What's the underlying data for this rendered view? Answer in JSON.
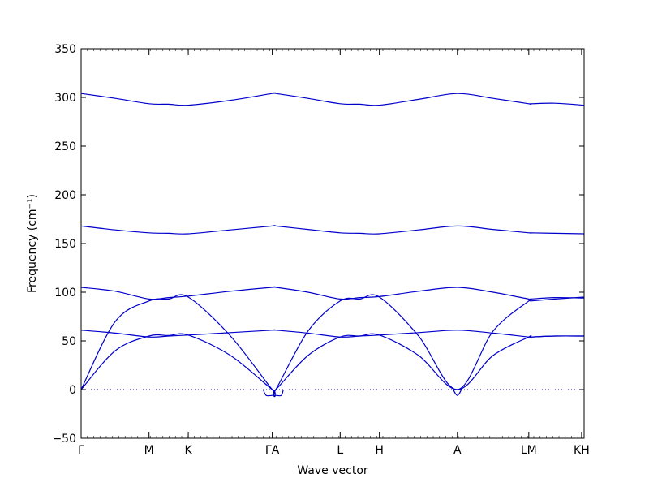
{
  "chart_data": {
    "type": "line",
    "title": "",
    "xlabel": "Wave vector",
    "ylabel": "Frequency (cm⁻¹)",
    "ylim": [
      -50,
      350
    ],
    "yticks": [
      -50,
      0,
      50,
      100,
      150,
      200,
      250,
      300,
      350
    ],
    "ytick_labels": [
      "−50",
      "0",
      "50",
      "100",
      "150",
      "200",
      "250",
      "300",
      "350"
    ],
    "xlim": [
      0,
      10
    ],
    "high_symmetry_points": [
      {
        "label": "Γ",
        "x": 0
      },
      {
        "label": "M",
        "x": 1.35
      },
      {
        "label": "K",
        "x": 2.13
      },
      {
        "label": "ΓA",
        "x": 3.8
      },
      {
        "label": "L",
        "x": 5.15
      },
      {
        "label": "H",
        "x": 5.93
      },
      {
        "label": "A",
        "x": 7.48
      },
      {
        "label": "LM",
        "x": 8.9
      },
      {
        "label": "KH",
        "x": 9.95
      }
    ],
    "zero_line": {
      "y": 0,
      "style": "dotted"
    },
    "line_color": "#0000cc",
    "series": [
      {
        "x": [
          0,
          0.68,
          1.35,
          1.74,
          2.13,
          2.97,
          3.8,
          3.87,
          4.51,
          5.15,
          5.54,
          5.93,
          6.71,
          7.48,
          8.19,
          8.9,
          8.94,
          9.42,
          10
        ],
        "y": [
          304,
          299,
          293.5,
          293,
          292,
          297,
          304,
          304,
          299,
          293.5,
          293,
          292,
          298,
          304,
          299,
          293.5,
          293.5,
          294,
          292
        ]
      },
      {
        "x": [
          0,
          0.68,
          1.35,
          1.74,
          2.13,
          2.97,
          3.8,
          3.87,
          4.51,
          5.15,
          5.54,
          5.93,
          6.71,
          7.48,
          8.19,
          8.9,
          8.94,
          9.42,
          10
        ],
        "y": [
          168,
          164,
          161,
          160.5,
          160,
          164,
          168,
          168,
          164.5,
          161,
          160.5,
          160,
          164,
          168,
          164.5,
          161,
          161,
          160.5,
          160
        ]
      },
      {
        "x": [
          0,
          0.68,
          1.35,
          1.74,
          2.13,
          2.97,
          3.8,
          3.87,
          4.51,
          5.15,
          5.54,
          5.93,
          6.71,
          7.48,
          8.19,
          8.9,
          8.94,
          9.42,
          10
        ],
        "y": [
          105,
          101,
          93,
          94.5,
          96,
          101,
          105,
          105,
          100,
          93,
          94.5,
          95.5,
          101,
          105,
          100,
          93,
          93,
          94.5,
          94
        ]
      },
      {
        "x": [
          0,
          0.68,
          1.35,
          1.74,
          2.13,
          2.97,
          3.8,
          3.87,
          4.51,
          5.15,
          5.54,
          5.93,
          6.71,
          7.48,
          8.19,
          8.9,
          8.94,
          9.42,
          10
        ],
        "y": [
          61,
          58,
          54,
          55,
          56,
          58.5,
          61,
          61,
          58,
          54,
          55,
          56,
          58.5,
          61,
          58,
          54,
          54,
          55,
          55
        ]
      },
      {
        "x": [
          0,
          0.68,
          1.35,
          1.74,
          2.13,
          2.97,
          3.8,
          3.87,
          4.51,
          5.15,
          5.54,
          5.93,
          6.71,
          7.48,
          8.19,
          8.9,
          8.94,
          9.42,
          10
        ],
        "y": [
          0,
          40,
          55,
          55.5,
          56,
          35,
          0,
          0,
          35,
          54,
          55,
          56,
          35,
          0,
          35,
          54,
          54,
          55,
          55
        ]
      },
      {
        "x": [
          0,
          0.68,
          1.35,
          1.74,
          2.13,
          2.97,
          3.8,
          3.87,
          4.51,
          5.15,
          5.54,
          5.93,
          6.71,
          7.48,
          8.19,
          8.9,
          8.94,
          9.42,
          10
        ],
        "y": [
          0,
          70,
          91,
          93,
          95,
          55,
          0,
          0,
          60,
          91,
          93,
          95,
          55,
          0,
          60,
          91,
          91,
          93,
          95
        ]
      },
      {
        "x": [
          3.62,
          3.68,
          3.8,
          3.87,
          3.98,
          4.02
        ],
        "y": [
          0,
          -6,
          -6,
          -6,
          -6,
          0
        ]
      },
      {
        "x": [
          7.4,
          7.44,
          7.48,
          7.52,
          7.56
        ],
        "y": [
          0,
          -4,
          -6,
          -4,
          0
        ]
      }
    ]
  }
}
